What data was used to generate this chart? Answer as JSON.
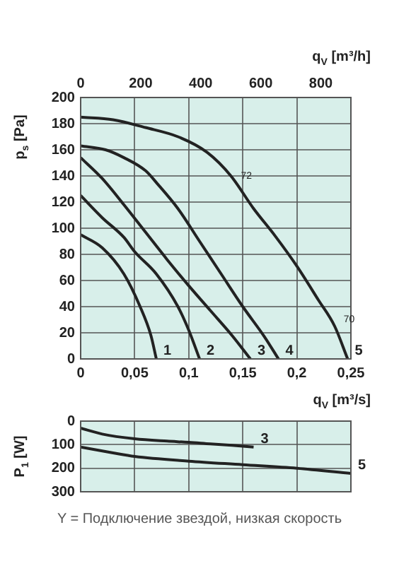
{
  "chart_data": [
    {
      "type": "line",
      "xlabel": "q$_{V}$ [m³/s]",
      "ylabel": "p$_{s}$ [Pa]",
      "x2label": "q$_{V}$ [m³/h]",
      "xlim": [
        0,
        0.25
      ],
      "xticks": [
        0,
        {
          "value": 0.05,
          "label": "0,05"
        },
        {
          "value": 0.1,
          "label": "0,1"
        },
        {
          "value": 0.15,
          "label": "0,15"
        },
        {
          "value": 0.2,
          "label": "0,2"
        },
        {
          "value": 0.25,
          "label": "0,25"
        }
      ],
      "x2lim": [
        0,
        900
      ],
      "x2ticks": [
        0,
        200,
        400,
        600,
        800
      ],
      "ylim": [
        0,
        200
      ],
      "yticks": [
        0,
        20,
        40,
        60,
        80,
        100,
        120,
        140,
        160,
        180,
        200
      ],
      "grid": true,
      "legend": false,
      "marker": "none",
      "line_style": "solid",
      "series": [
        {
          "name": "1",
          "color": "#222222",
          "x": [
            0,
            0.02,
            0.04,
            0.055,
            0.065,
            0.07
          ],
          "values": [
            95,
            85,
            65,
            40,
            18,
            0
          ]
        },
        {
          "name": "2",
          "color": "#222222",
          "x": [
            0,
            0.02,
            0.04,
            0.05,
            0.07,
            0.09,
            0.1,
            0.11
          ],
          "values": [
            125,
            108,
            93,
            82,
            65,
            40,
            22,
            0
          ]
        },
        {
          "name": "3",
          "color": "#222222",
          "x": [
            0,
            0.02,
            0.04,
            0.06,
            0.08,
            0.1,
            0.12,
            0.14,
            0.157
          ],
          "values": [
            154,
            138,
            118,
            97,
            76,
            56,
            37,
            18,
            0
          ]
        },
        {
          "name": "4",
          "color": "#222222",
          "x": [
            0,
            0.023,
            0.04,
            0.06,
            0.071,
            0.09,
            0.11,
            0.13,
            0.15,
            0.17,
            0.183
          ],
          "values": [
            163,
            160,
            154,
            144,
            134,
            115,
            90,
            65,
            40,
            17,
            0
          ]
        },
        {
          "name": "5",
          "color": "#222222",
          "x": [
            0,
            0.03,
            0.06,
            0.09,
            0.117,
            0.139,
            0.16,
            0.18,
            0.2,
            0.22,
            0.235,
            0.247
          ],
          "values": [
            185,
            183,
            177,
            170,
            158,
            140,
            115,
            94,
            71,
            45,
            25,
            0
          ]
        }
      ],
      "annotations": [
        {
          "text": "72",
          "x": 0.143,
          "y": 140
        },
        {
          "text": "70",
          "x": 0.238,
          "y": 30
        }
      ]
    },
    {
      "type": "line",
      "ylabel": "P$_{1}$ [W]",
      "tick_labels": "y",
      "xlim": [
        0,
        0.25
      ],
      "xticks": [
        0,
        0.05,
        0.1,
        0.15,
        0.2,
        0.25
      ],
      "ylim": [
        300,
        0
      ],
      "yticks": [
        0,
        100,
        200,
        300
      ],
      "grid": true,
      "legend": false,
      "marker": "none",
      "line_style": "solid",
      "series": [
        {
          "name": "3",
          "color": "#222222",
          "x": [
            0,
            0.02,
            0.05,
            0.08,
            0.1,
            0.12,
            0.14,
            0.16
          ],
          "values": [
            30,
            55,
            75,
            85,
            90,
            97,
            103,
            110
          ]
        },
        {
          "name": "5",
          "color": "#222222",
          "x": [
            0,
            0.03,
            0.05,
            0.1,
            0.15,
            0.2,
            0.25
          ],
          "values": [
            110,
            135,
            150,
            170,
            185,
            200,
            222
          ]
        }
      ],
      "annotations": [
        "Y = Подключение звездой, низкая скорость"
      ]
    }
  ]
}
